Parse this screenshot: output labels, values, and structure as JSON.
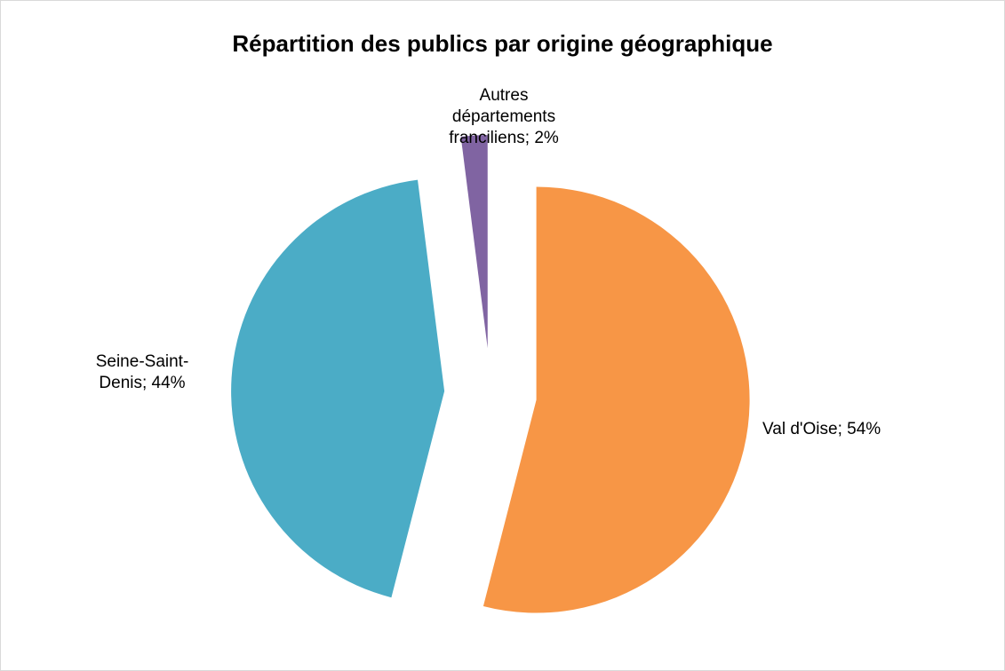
{
  "chart_data": {
    "type": "pie",
    "title": "Répartition des publics par origine géographique",
    "values": [
      54,
      44,
      2
    ],
    "value_labels": [
      "Val d'Oise; 54%",
      "Seine-Saint-Denis; 44%",
      "Autres départements franciliens; 2%"
    ],
    "colors": [
      "#f79646",
      "#4bacc6",
      "#8064a2"
    ]
  }
}
